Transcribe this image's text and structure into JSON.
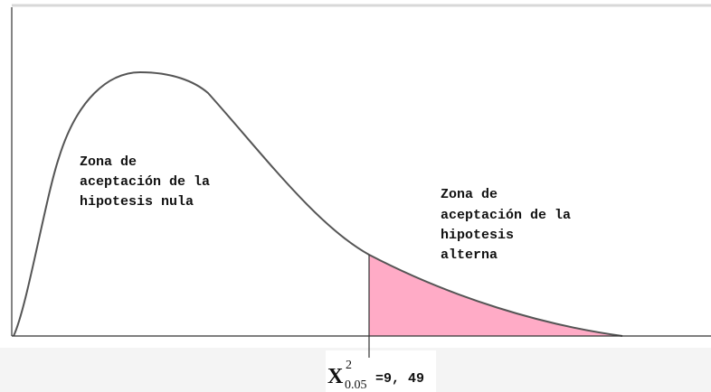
{
  "null_zone": {
    "lines": [
      "Zona de",
      "aceptación de la",
      "hipotesis nula"
    ]
  },
  "alt_zone": {
    "lines": [
      "Zona de",
      "aceptación de la",
      "hipotesis",
      "alterna"
    ]
  },
  "critical": {
    "symbol": "X",
    "superscript": "2",
    "subscript": "0.05",
    "value": "=9, 49"
  }
}
